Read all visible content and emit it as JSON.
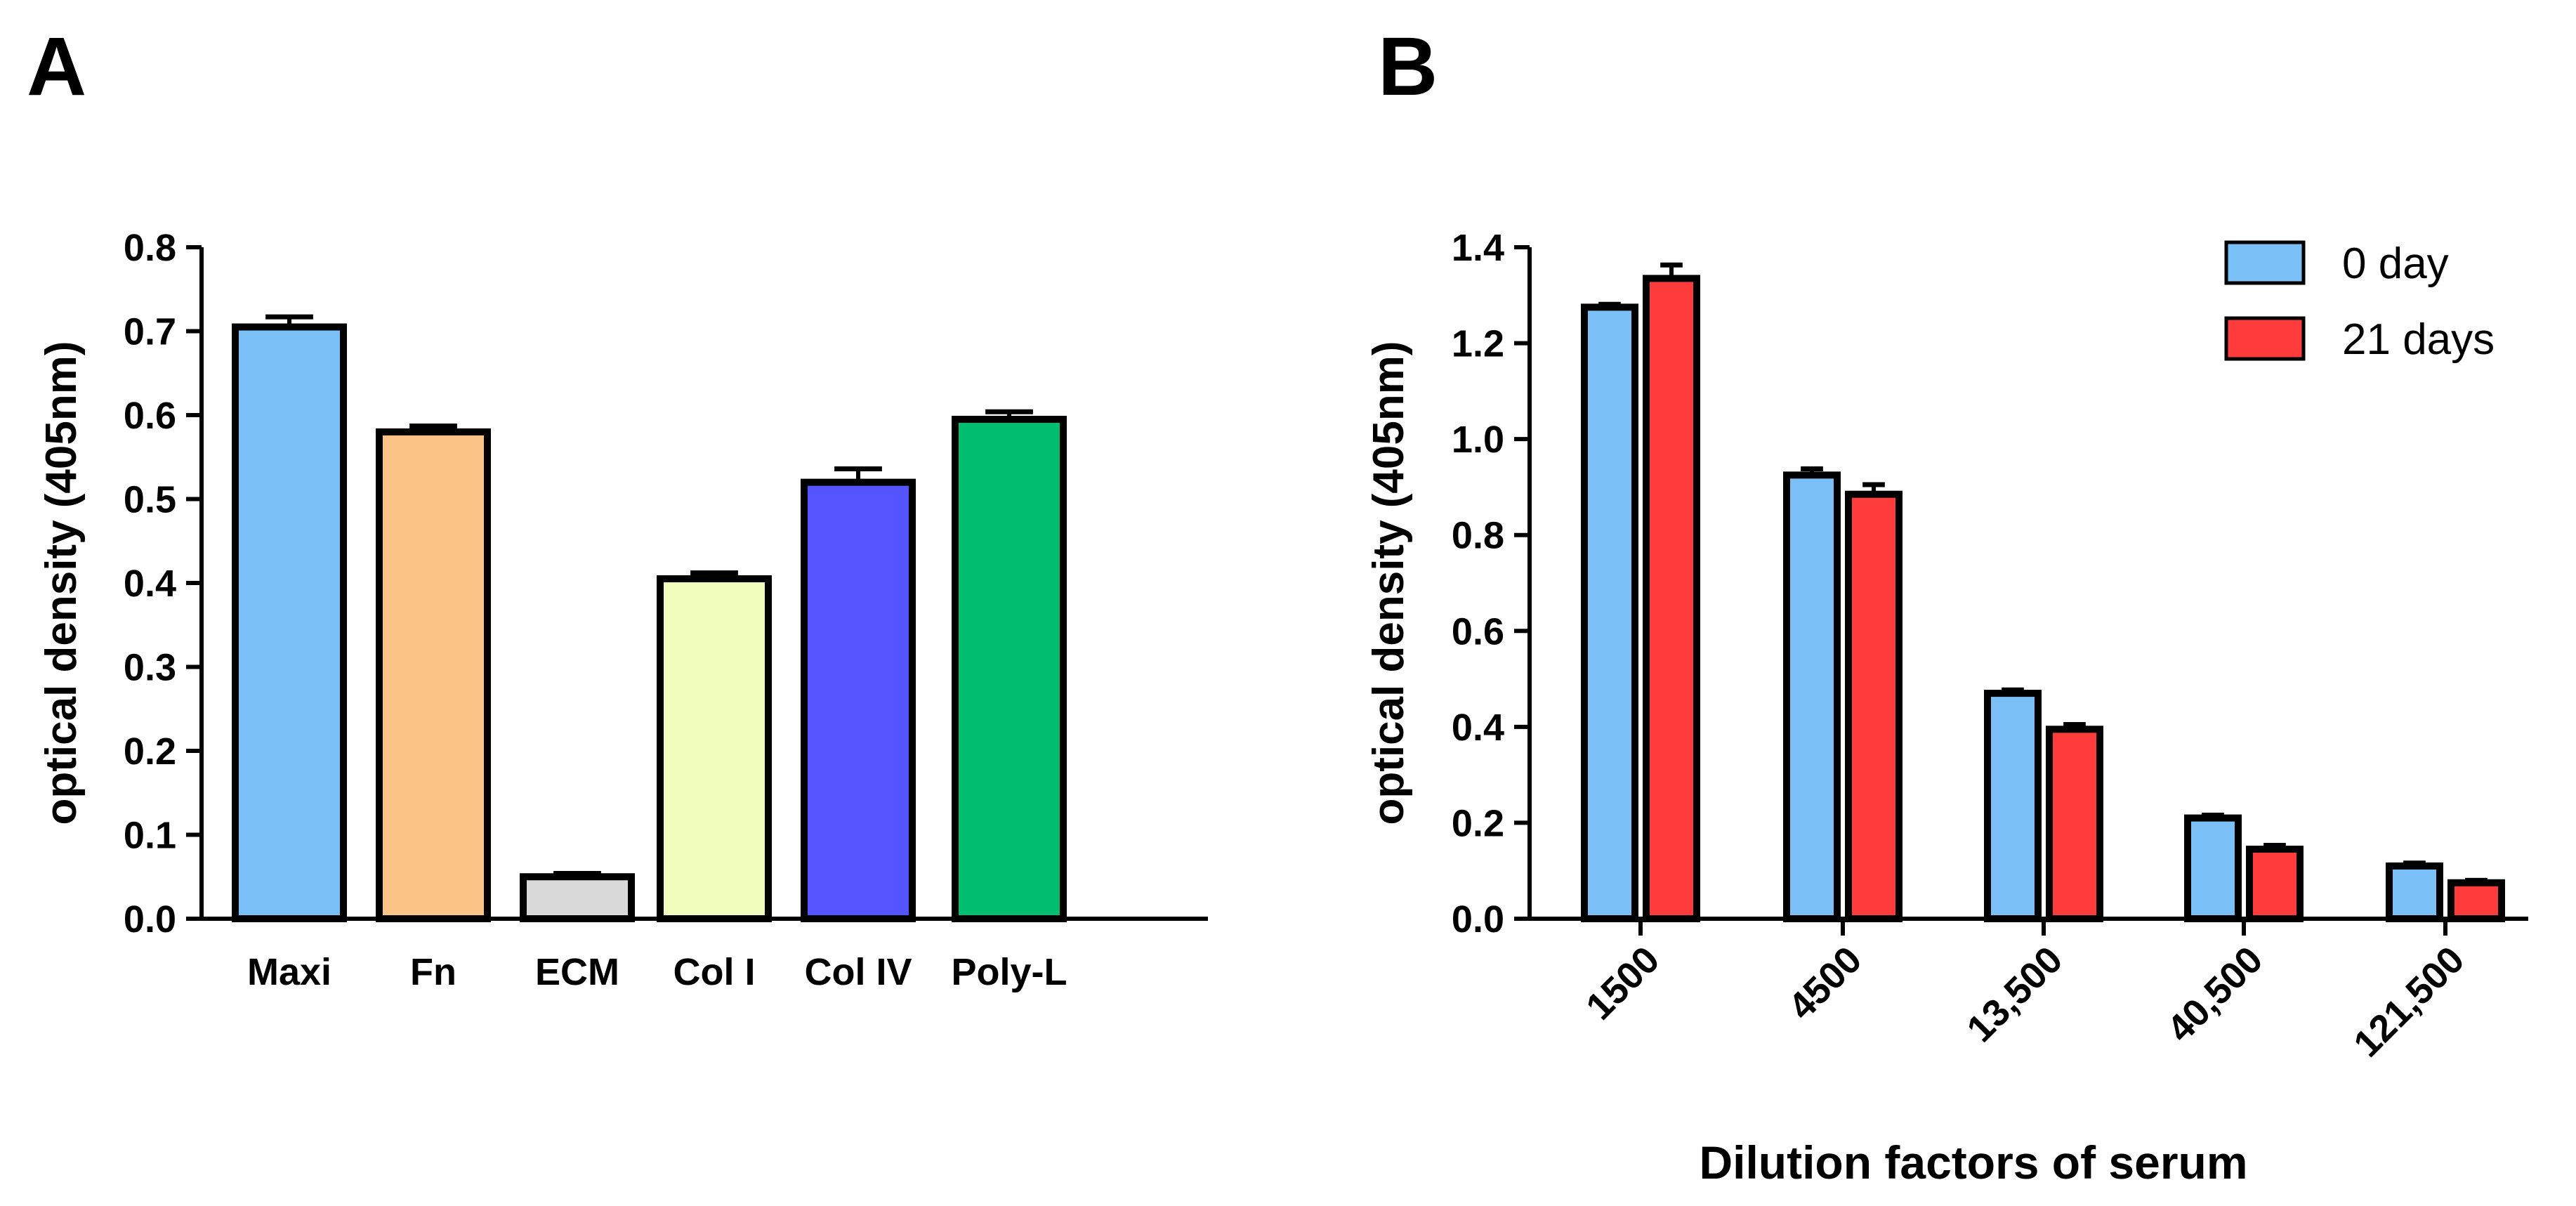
{
  "chart_data": [
    {
      "panel_label": "A",
      "type": "bar",
      "title": "",
      "xlabel": "",
      "ylabel": "optical density (405nm)",
      "ylim": [
        0,
        0.8
      ],
      "yticks": [
        "0.0",
        "0.1",
        "0.2",
        "0.3",
        "0.4",
        "0.5",
        "0.6",
        "0.7",
        "0.8"
      ],
      "categories": [
        "Maxi",
        "Fn",
        "ECM",
        "Col I",
        "Col IV",
        "Poly-L"
      ],
      "values": [
        0.705,
        0.58,
        0.05,
        0.405,
        0.52,
        0.595
      ],
      "errors": [
        0.012,
        0.007,
        0.004,
        0.007,
        0.016,
        0.009
      ],
      "colors": [
        "#7ABFF5",
        "#FBC386",
        "#D9D9D9",
        "#F1FDBC",
        "#5555FF",
        "#00BD70"
      ]
    },
    {
      "panel_label": "B",
      "type": "bar",
      "title": "",
      "xlabel": "Dilution factors of serum",
      "ylabel": "optical density (405nm)",
      "ylim": [
        0,
        1.4
      ],
      "yticks": [
        "0.0",
        "0.2",
        "0.4",
        "0.6",
        "0.8",
        "1.0",
        "1.2",
        "1.4"
      ],
      "categories": [
        "1500",
        "4500",
        "13,500",
        "40,500",
        "121,500"
      ],
      "series": [
        {
          "name": "0 day",
          "color": "#7ABFF5",
          "values": [
            1.275,
            0.925,
            0.47,
            0.21,
            0.11
          ],
          "errors": [
            0.006,
            0.013,
            0.007,
            0.006,
            0.006
          ]
        },
        {
          "name": "21 days",
          "color": "#FF3C3C",
          "values": [
            1.335,
            0.885,
            0.395,
            0.145,
            0.075
          ],
          "errors": [
            0.028,
            0.02,
            0.01,
            0.008,
            0.005
          ]
        }
      ],
      "legend": "top-right"
    }
  ]
}
